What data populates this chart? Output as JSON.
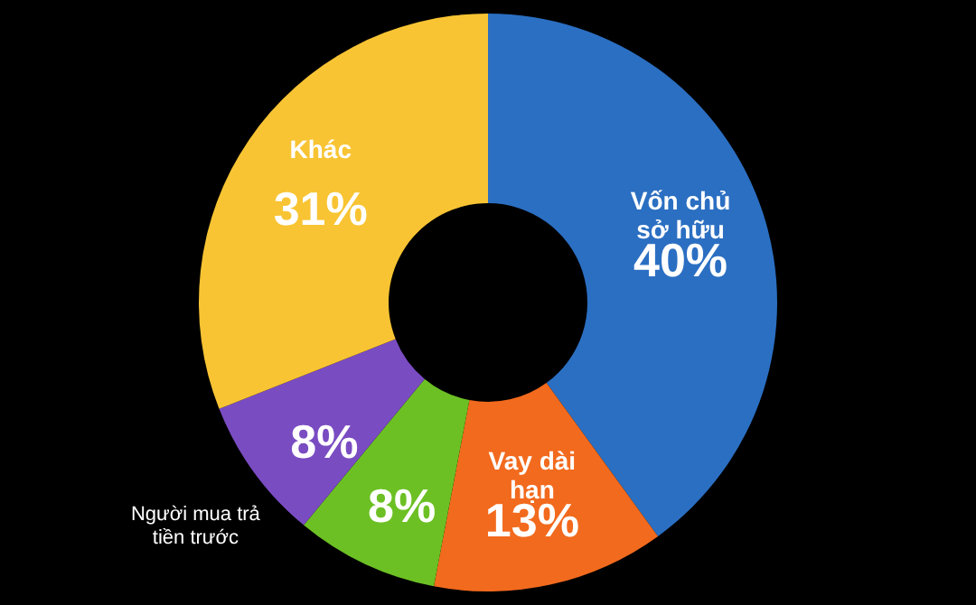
{
  "chart_data": {
    "type": "donut",
    "categories": [
      "Vốn chủ sở hữu",
      "Vay dài hạn",
      null,
      "Người mua trả tiền trước",
      "Khác"
    ],
    "values": [
      40,
      13,
      8,
      8,
      31
    ],
    "value_labels": [
      "40%",
      "13%",
      "8%",
      "8%",
      "31%"
    ],
    "colors": [
      "#2b6fc2",
      "#f26a1d",
      "#6cc024",
      "#7a4cc2",
      "#f8c433"
    ]
  }
}
